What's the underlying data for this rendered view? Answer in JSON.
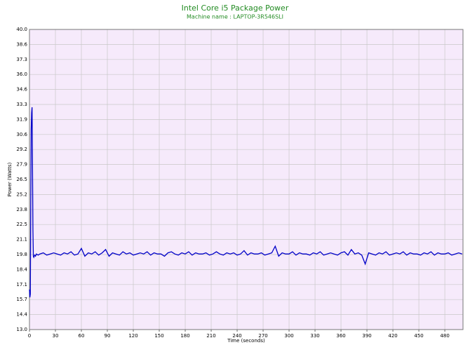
{
  "chart_data": {
    "type": "line",
    "title": "Intel Core i5 Package Power",
    "subtitle": "Machine name : LAPTOP-3R546SLI",
    "x_label": "Time (seconds)",
    "y_label": "Power (Watts)",
    "title_color": "#228b22",
    "background": "#f6eafb",
    "grid": true,
    "xlim": [
      0,
      501
    ],
    "ylim": [
      13,
      40
    ],
    "xticks": [
      0,
      30,
      60,
      90,
      120,
      150,
      180,
      210,
      240,
      270,
      300,
      330,
      360,
      390,
      420,
      450,
      480
    ],
    "yticks": [
      {
        "value": 13,
        "label": "13.0"
      },
      {
        "value": 14.35,
        "label": "14.4"
      },
      15.7,
      {
        "value": 17.05,
        "label": "17.1"
      },
      18.4,
      {
        "value": 19.75,
        "label": "19.8"
      },
      21.1,
      {
        "value": 22.45,
        "label": "22.5"
      },
      23.8,
      {
        "value": 25.15,
        "label": "25.2"
      },
      26.5,
      {
        "value": 27.85,
        "label": "27.9"
      },
      29.2,
      {
        "value": 30.55,
        "label": "30.6"
      },
      31.9,
      {
        "value": 33.25,
        "label": "33.3"
      },
      34.6,
      {
        "value": 35.95,
        "label": "36.0"
      },
      37.3,
      {
        "value": 38.65,
        "label": "38.6"
      },
      {
        "value": 40,
        "label": "40.0"
      }
    ],
    "x": [
      0,
      0.5,
      1,
      1.5,
      2,
      2.5,
      3,
      3.5,
      4,
      4.5,
      5,
      6,
      7,
      8,
      10,
      12,
      16,
      20,
      24,
      28,
      32,
      36,
      40,
      44,
      48,
      52,
      56,
      60,
      64,
      68,
      72,
      76,
      80,
      84,
      88,
      92,
      96,
      100,
      104,
      108,
      112,
      116,
      120,
      124,
      128,
      132,
      136,
      140,
      144,
      148,
      152,
      156,
      160,
      164,
      168,
      172,
      176,
      180,
      184,
      188,
      192,
      196,
      200,
      204,
      208,
      212,
      216,
      220,
      224,
      228,
      232,
      236,
      240,
      244,
      248,
      252,
      256,
      260,
      264,
      268,
      272,
      276,
      280,
      284,
      288,
      292,
      296,
      300,
      304,
      308,
      312,
      316,
      320,
      324,
      328,
      332,
      336,
      340,
      344,
      348,
      352,
      356,
      360,
      364,
      368,
      372,
      376,
      380,
      384,
      388,
      392,
      396,
      400,
      404,
      408,
      412,
      416,
      420,
      424,
      428,
      432,
      436,
      440,
      444,
      448,
      452,
      456,
      460,
      464,
      468,
      472,
      476,
      480,
      484,
      488,
      492,
      496,
      500
    ],
    "series": [
      {
        "name": "Package Power",
        "color": "#0000c8",
        "values": [
          16.6,
          15.9,
          16.2,
          24,
          31,
          32.5,
          33,
          28,
          22,
          19.6,
          19.5,
          19.7,
          19.6,
          19.8,
          19.7,
          19.8,
          19.9,
          19.7,
          19.8,
          19.9,
          19.8,
          19.7,
          19.9,
          19.8,
          20.0,
          19.7,
          19.8,
          20.3,
          19.6,
          19.9,
          19.8,
          20.0,
          19.7,
          19.9,
          20.2,
          19.6,
          19.9,
          19.8,
          19.7,
          20.0,
          19.8,
          19.9,
          19.7,
          19.8,
          19.9,
          19.8,
          20.0,
          19.7,
          19.9,
          19.8,
          19.8,
          19.6,
          19.9,
          20.0,
          19.8,
          19.7,
          19.9,
          19.8,
          20.0,
          19.7,
          19.9,
          19.8,
          19.8,
          19.9,
          19.7,
          19.8,
          20.0,
          19.8,
          19.7,
          19.9,
          19.8,
          19.9,
          19.7,
          19.8,
          20.1,
          19.7,
          19.9,
          19.8,
          19.8,
          19.9,
          19.7,
          19.8,
          19.9,
          20.5,
          19.6,
          19.9,
          19.8,
          19.8,
          20.0,
          19.7,
          19.9,
          19.8,
          19.8,
          19.7,
          19.9,
          19.8,
          20.0,
          19.7,
          19.8,
          19.9,
          19.8,
          19.7,
          19.9,
          20.0,
          19.7,
          20.2,
          19.8,
          19.9,
          19.7,
          18.9,
          19.9,
          19.8,
          19.7,
          19.9,
          19.8,
          20.0,
          19.7,
          19.8,
          19.9,
          19.8,
          20.0,
          19.7,
          19.9,
          19.8,
          19.8,
          19.7,
          19.9,
          19.8,
          20.0,
          19.7,
          19.9,
          19.8,
          19.8,
          19.9,
          19.7,
          19.8,
          19.9,
          19.8
        ]
      }
    ]
  }
}
